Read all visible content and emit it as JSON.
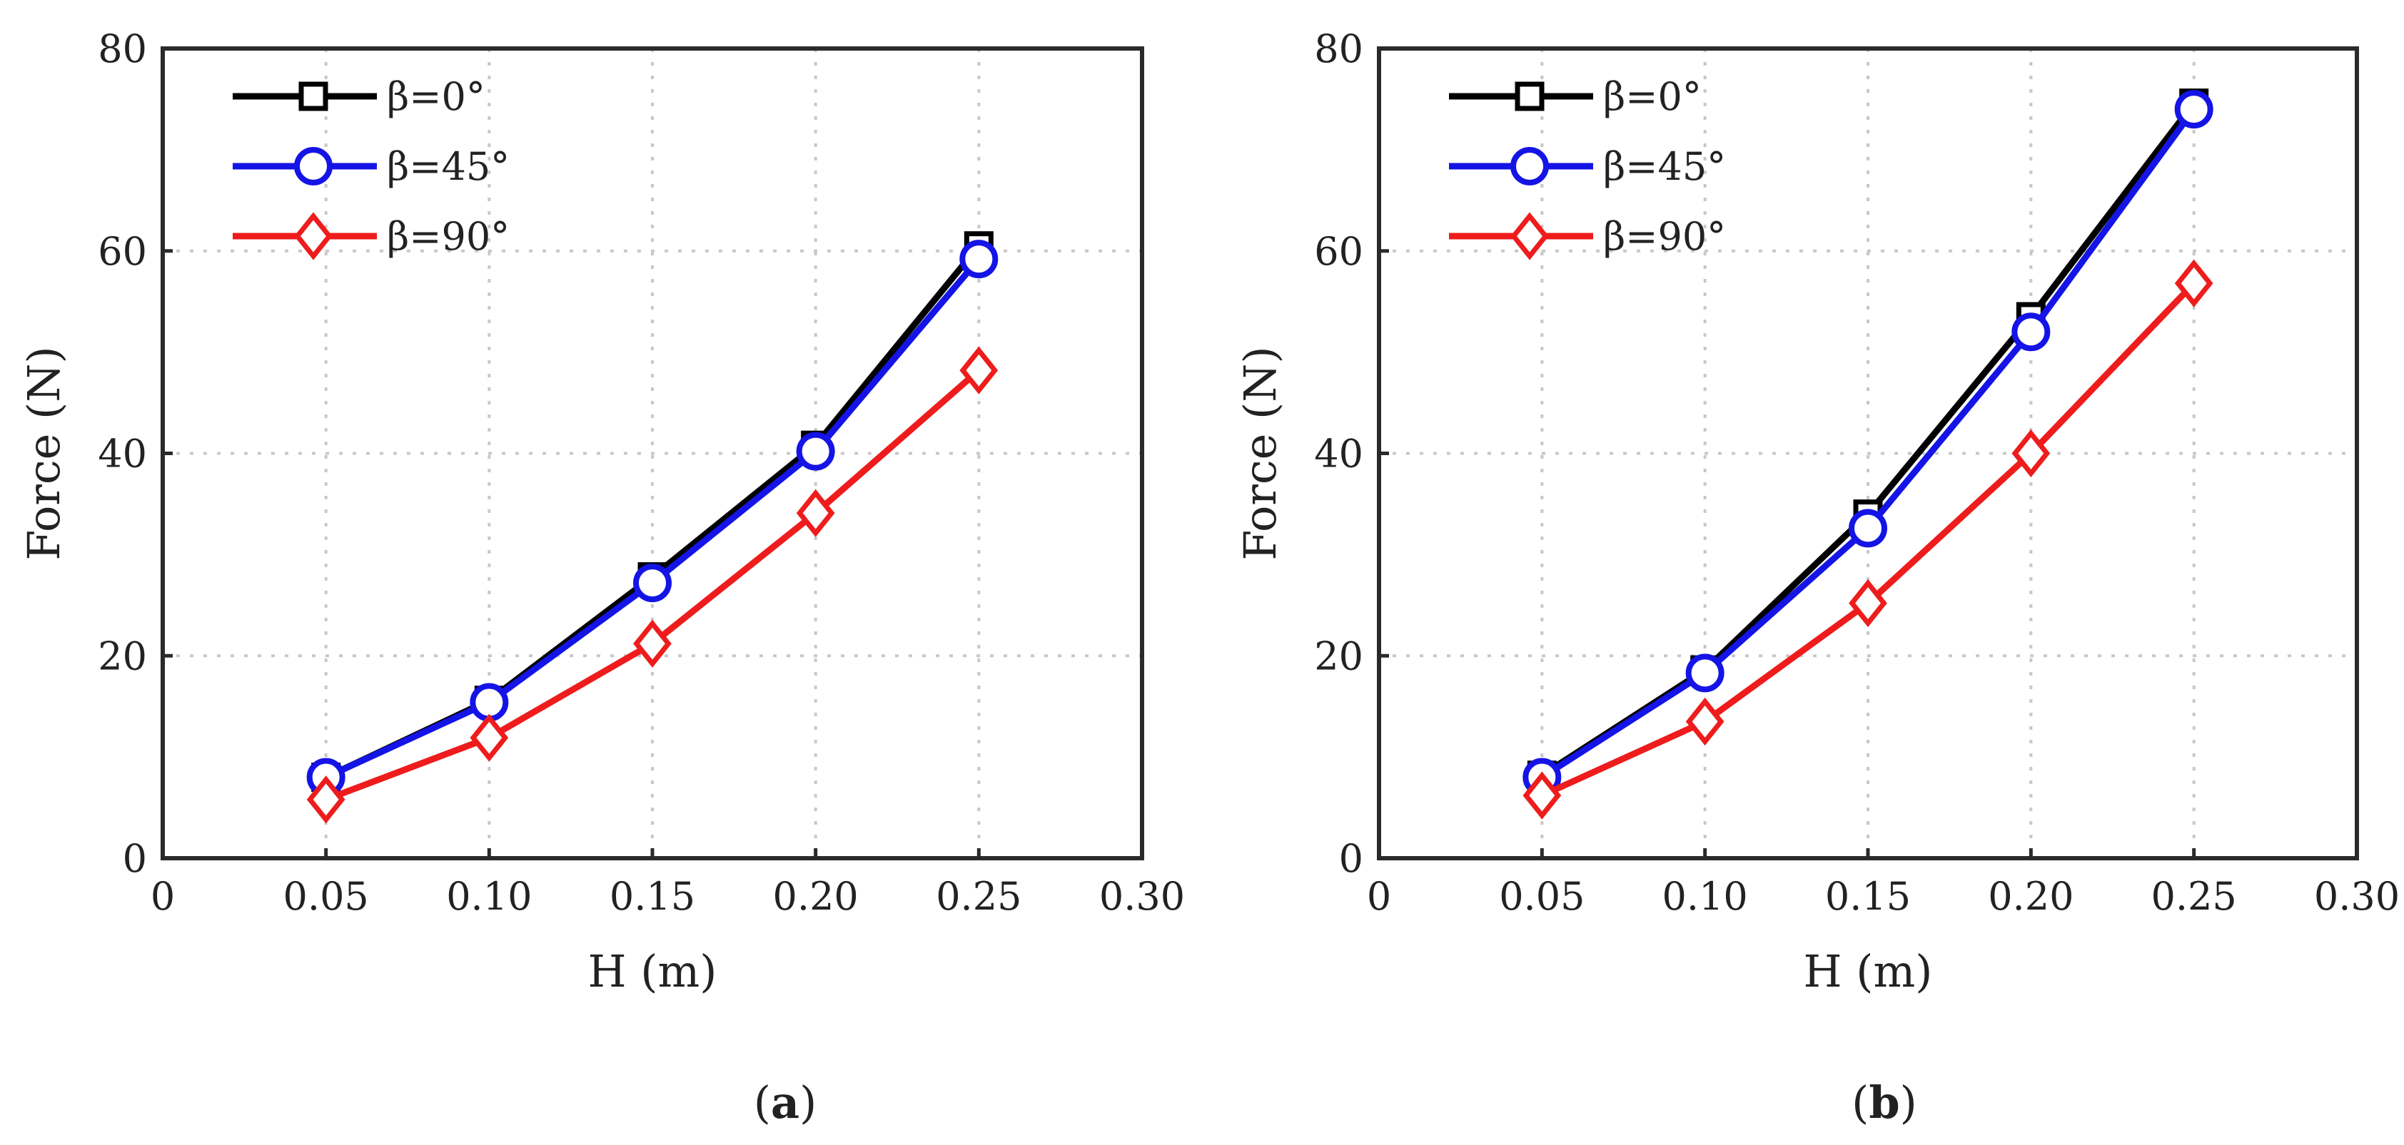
{
  "figure": {
    "panels": [
      {
        "label": "a",
        "chart_data": {
          "type": "line",
          "xlabel": "H (m)",
          "ylabel": "Force (N)",
          "xlim": [
            0,
            0.3
          ],
          "ylim": [
            0,
            80
          ],
          "xticks": [
            "0",
            "0.05",
            "0.10",
            "0.15",
            "0.20",
            "0.25",
            "0.30"
          ],
          "yticks": [
            "0",
            "20",
            "40",
            "60",
            "80"
          ],
          "grid": true,
          "legend_position": "top-left",
          "x": [
            0.05,
            0.1,
            0.15,
            0.2,
            0.25
          ],
          "series": [
            {
              "name": "β=0°",
              "color": "#000000",
              "marker": "square",
              "values": [
                8.0,
                15.6,
                27.8,
                40.8,
                60.5
              ]
            },
            {
              "name": "β=45°",
              "color": "#1414e6",
              "marker": "circle",
              "values": [
                8.0,
                15.4,
                27.2,
                40.2,
                59.2
              ]
            },
            {
              "name": "β=90°",
              "color": "#ee1c1c",
              "marker": "diamond",
              "values": [
                5.8,
                11.9,
                21.2,
                34.1,
                48.2
              ]
            }
          ]
        }
      },
      {
        "label": "b",
        "chart_data": {
          "type": "line",
          "xlabel": "H (m)",
          "ylabel": "Force (N)",
          "xlim": [
            0,
            0.3
          ],
          "ylim": [
            0,
            80
          ],
          "xticks": [
            "0",
            "0.05",
            "0.10",
            "0.15",
            "0.20",
            "0.25",
            "0.30"
          ],
          "yticks": [
            "0",
            "20",
            "40",
            "60",
            "80"
          ],
          "grid": true,
          "legend_position": "top-left",
          "x": [
            0.05,
            0.1,
            0.15,
            0.2,
            0.25
          ],
          "series": [
            {
              "name": "β=0°",
              "color": "#000000",
              "marker": "square",
              "values": [
                8.2,
                18.6,
                34.0,
                53.5,
                74.6
              ]
            },
            {
              "name": "β=45°",
              "color": "#1414e6",
              "marker": "circle",
              "values": [
                8.0,
                18.3,
                32.6,
                52.0,
                74.0
              ]
            },
            {
              "name": "β=90°",
              "color": "#ee1c1c",
              "marker": "diamond",
              "values": [
                6.2,
                13.5,
                25.2,
                40.0,
                56.8
              ]
            }
          ]
        }
      }
    ]
  }
}
